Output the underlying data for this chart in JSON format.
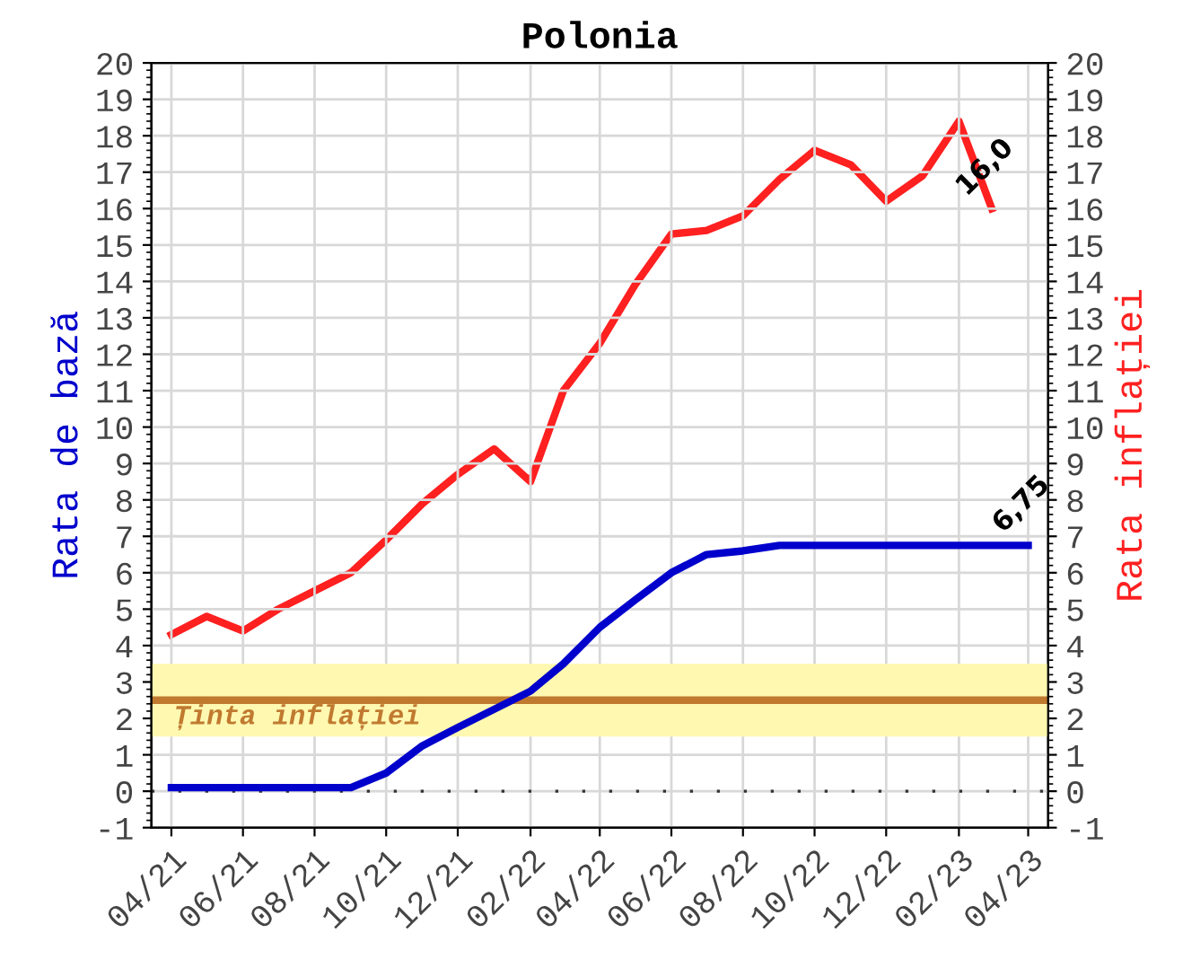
{
  "chart_data": {
    "type": "line",
    "title": "Polonia",
    "ylabel": "Rata de bază",
    "y2label": "Rata inflației",
    "x": [
      "2021-04",
      "2021-05",
      "2021-06",
      "2021-07",
      "2021-08",
      "2021-09",
      "2021-10",
      "2021-11",
      "2021-12",
      "2022-01",
      "2022-02",
      "2022-03",
      "2022-04",
      "2022-05",
      "2022-06",
      "2022-07",
      "2022-08",
      "2022-09",
      "2022-10",
      "2022-11",
      "2022-12",
      "2023-01",
      "2023-02",
      "2023-03",
      "2023-04"
    ],
    "series": [
      {
        "color": "#0000cc",
        "values": [
          0.1,
          0.1,
          0.1,
          0.1,
          0.1,
          0.1,
          0.5,
          1.25,
          1.75,
          2.25,
          2.75,
          3.5,
          4.5,
          5.25,
          6.0,
          6.5,
          6.6,
          6.75,
          6.75,
          6.75,
          6.75,
          6.75,
          6.75,
          6.75,
          6.75
        ]
      },
      {
        "color": "#ff2020",
        "axis": "y2",
        "values": [
          4.3,
          4.8,
          4.4,
          5.0,
          5.5,
          6.0,
          6.9,
          7.9,
          8.7,
          9.4,
          8.5,
          11.0,
          12.3,
          13.9,
          15.3,
          15.4,
          15.8,
          16.8,
          17.6,
          17.2,
          16.2,
          16.9,
          18.4,
          16.0,
          null
        ]
      }
    ],
    "xlim": [
      "2021-03-15",
      "2023-04-18"
    ],
    "xticks": [
      {
        "value": "2021-04",
        "label": "04/21"
      },
      {
        "value": "2021-06",
        "label": "06/21"
      },
      {
        "value": "2021-08",
        "label": "08/21"
      },
      {
        "value": "2021-10",
        "label": "10/21"
      },
      {
        "value": "2021-12",
        "label": "12/21"
      },
      {
        "value": "2022-02",
        "label": "02/22"
      },
      {
        "value": "2022-04",
        "label": "04/22"
      },
      {
        "value": "2022-06",
        "label": "06/22"
      },
      {
        "value": "2022-08",
        "label": "08/22"
      },
      {
        "value": "2022-10",
        "label": "10/22"
      },
      {
        "value": "2022-12",
        "label": "12/22"
      },
      {
        "value": "2023-02",
        "label": "02/23"
      },
      {
        "value": "2023-04",
        "label": "04/23"
      }
    ],
    "ylim": [
      -1,
      20
    ],
    "yticks": [
      -1,
      0,
      1,
      2,
      3,
      4,
      5,
      6,
      7,
      8,
      9,
      10,
      11,
      12,
      13,
      14,
      15,
      16,
      17,
      18,
      19,
      20
    ],
    "y2lim": [
      -1,
      20
    ],
    "y2ticks": [
      -1,
      0,
      1,
      2,
      3,
      4,
      5,
      6,
      7,
      8,
      9,
      10,
      11,
      12,
      13,
      14,
      15,
      16,
      17,
      18,
      19,
      20
    ],
    "grid": true,
    "legend": false,
    "marker": "none",
    "line_style": "solid",
    "bands": [
      {
        "axis": "y",
        "from": 1.5,
        "to": 3.5,
        "color": "#fff8b0"
      }
    ],
    "ref_lines": [
      {
        "axis": "y",
        "value": 2.5,
        "label": "Ținta inflației",
        "color": "#c07a30",
        "line_style": "solid"
      },
      {
        "axis": "y",
        "value": 0,
        "color": "#333333",
        "line_style": "dotted"
      }
    ],
    "annotations": [
      {
        "text": "16,0",
        "x": "2023-03",
        "y": 16.0
      },
      {
        "text": "6,75",
        "x": "2023-04",
        "y": 6.75
      }
    ]
  }
}
